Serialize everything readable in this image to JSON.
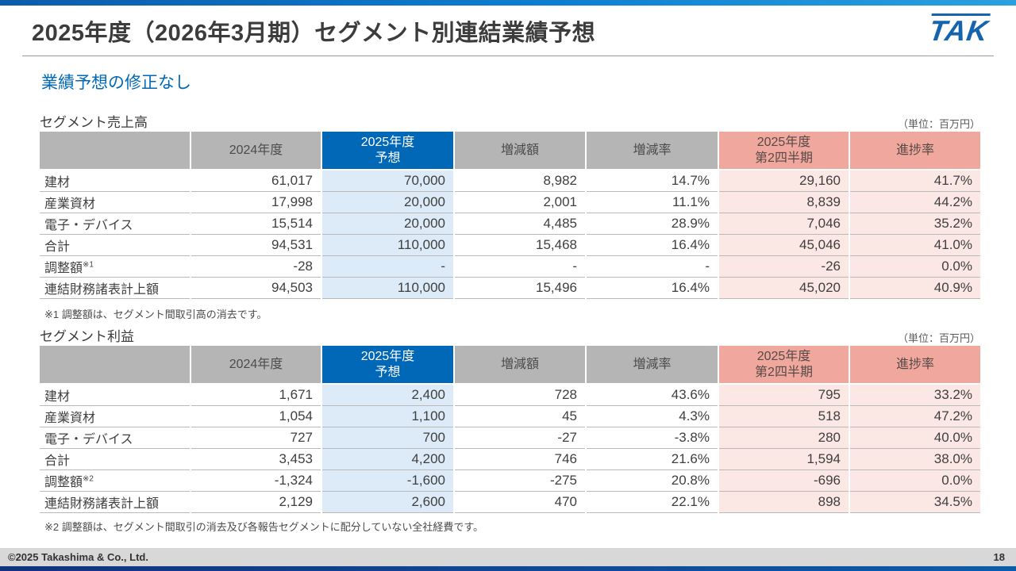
{
  "colors": {
    "accent_blue": "#0068b7",
    "header_gray": "#b5b5b5",
    "header_pink": "#f0a79d",
    "cell_light_blue": "#dcebf7",
    "cell_light_pink": "#fbe7e4"
  },
  "header": {
    "title": "2025年度（2026年3月期）セグメント別連結業績予想",
    "logo_text": "TAK"
  },
  "subtitle": "業績予想の修正なし",
  "tables": [
    {
      "section_title": "セグメント売上高",
      "unit_label": "（単位：百万円）",
      "columns": [
        "",
        "2024年度",
        "2025年度\n予想",
        "増減額",
        "増減率",
        "2025年度\n第2四半期",
        "進捗率"
      ],
      "rows": [
        {
          "label": "建材",
          "sup": "",
          "values": [
            "61,017",
            "70,000",
            "8,982",
            "14.7%",
            "29,160",
            "41.7%"
          ]
        },
        {
          "label": "産業資材",
          "sup": "",
          "values": [
            "17,998",
            "20,000",
            "2,001",
            "11.1%",
            "8,839",
            "44.2%"
          ]
        },
        {
          "label": "電子・デバイス",
          "sup": "",
          "values": [
            "15,514",
            "20,000",
            "4,485",
            "28.9%",
            "7,046",
            "35.2%"
          ]
        },
        {
          "label": "合計",
          "sup": "",
          "values": [
            "94,531",
            "110,000",
            "15,468",
            "16.4%",
            "45,046",
            "41.0%"
          ]
        },
        {
          "label": "調整額",
          "sup": "※1",
          "values": [
            "-28",
            "-",
            "-",
            "-",
            "-26",
            "0.0%"
          ]
        },
        {
          "label": "連結財務諸表計上額",
          "sup": "",
          "values": [
            "94,503",
            "110,000",
            "15,496",
            "16.4%",
            "45,020",
            "40.9%"
          ]
        }
      ],
      "footnote": "※1 調整額は、セグメント間取引高の消去です。"
    },
    {
      "section_title": "セグメント利益",
      "unit_label": "（単位：百万円）",
      "columns": [
        "",
        "2024年度",
        "2025年度\n予想",
        "増減額",
        "増減率",
        "2025年度\n第2四半期",
        "進捗率"
      ],
      "rows": [
        {
          "label": "建材",
          "sup": "",
          "values": [
            "1,671",
            "2,400",
            "728",
            "43.6%",
            "795",
            "33.2%"
          ]
        },
        {
          "label": "産業資材",
          "sup": "",
          "values": [
            "1,054",
            "1,100",
            "45",
            "4.3%",
            "518",
            "47.2%"
          ]
        },
        {
          "label": "電子・デバイス",
          "sup": "",
          "values": [
            "727",
            "700",
            "-27",
            "-3.8%",
            "280",
            "40.0%"
          ]
        },
        {
          "label": "合計",
          "sup": "",
          "values": [
            "3,453",
            "4,200",
            "746",
            "21.6%",
            "1,594",
            "38.0%"
          ]
        },
        {
          "label": "調整額",
          "sup": "※2",
          "values": [
            "-1,324",
            "-1,600",
            "-275",
            "20.8%",
            "-696",
            "0.0%"
          ]
        },
        {
          "label": "連結財務諸表計上額",
          "sup": "",
          "values": [
            "2,129",
            "2,600",
            "470",
            "22.1%",
            "898",
            "34.5%"
          ]
        }
      ],
      "footnote": "※2 調整額は、セグメント間取引の消去及び各報告セグメントに配分していない全社経費です。"
    }
  ],
  "footer": {
    "copyright": "©2025 Takashima & Co., Ltd.",
    "page_number": "18"
  }
}
